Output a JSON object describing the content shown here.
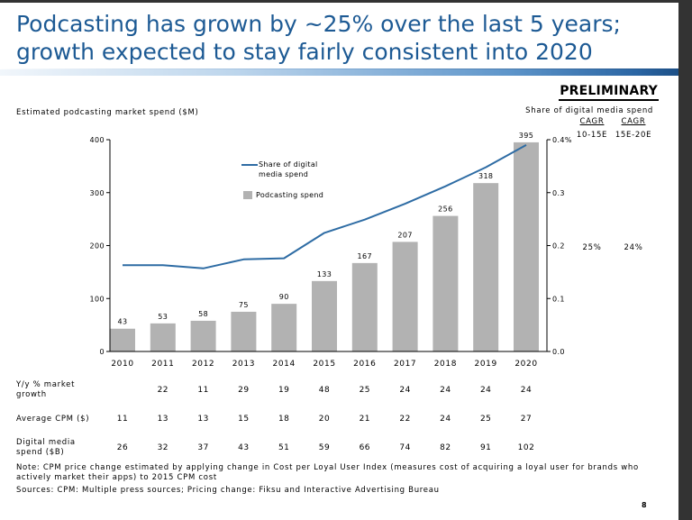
{
  "title": {
    "line1": "Podcasting has grown by ~25% over the last 5 years;",
    "line2": "growth expected to stay fairly consistent into 2020"
  },
  "badge": "PRELIMINARY",
  "colors": {
    "title": "#1d5a94",
    "bar": "#b2b2b2",
    "line": "#2e6ca4"
  },
  "chart_data": {
    "type": "bar",
    "ylabel": "Estimated podcasting market spend ($M)",
    "y2label": "Share of digital media spend",
    "categories": [
      "2010",
      "2011",
      "2012",
      "2013",
      "2014",
      "2015",
      "2016",
      "2017",
      "2018",
      "2019",
      "2020"
    ],
    "series": [
      {
        "name": "Podcasting spend",
        "values": [
          43,
          53,
          58,
          75,
          90,
          133,
          167,
          207,
          256,
          318,
          395
        ]
      },
      {
        "name": "Share of digital media spend",
        "values": [
          0.163,
          0.163,
          0.157,
          0.174,
          0.176,
          0.224,
          0.249,
          0.279,
          0.312,
          0.348,
          0.39
        ],
        "secondary_axis": true
      }
    ],
    "ylim": [
      0,
      400
    ],
    "y2lim": [
      0,
      0.4
    ],
    "yticks": [
      "0",
      "100",
      "200",
      "300",
      "400"
    ],
    "y2ticks": [
      "0.0",
      "0.1",
      "0.2",
      "0.3",
      "0.4%"
    ]
  },
  "cagr": {
    "columns": [
      {
        "label": "CAGR",
        "period": "10-15E",
        "value": "25%"
      },
      {
        "label": "CAGR",
        "period": "15E-20E",
        "value": "24%"
      }
    ]
  },
  "table": {
    "rows": [
      {
        "label": "Y/y % market growth",
        "values": [
          null,
          22,
          11,
          29,
          19,
          48,
          25,
          24,
          24,
          24,
          24
        ]
      },
      {
        "label": "Average CPM ($)",
        "values": [
          11,
          13,
          13,
          15,
          18,
          20,
          21,
          22,
          24,
          25,
          27
        ]
      },
      {
        "label": "Digital media spend ($B)",
        "values": [
          26,
          32,
          37,
          43,
          51,
          59,
          66,
          74,
          82,
          91,
          102
        ]
      }
    ]
  },
  "note_lines": [
    "Note: CPM price change estimated by applying change in Cost per Loyal User Index (measures cost of acquiring a loyal user for brands who",
    "actively market their apps) to 2015 CPM cost"
  ],
  "sources": "Sources: CPM: Multiple press sources; Pricing change: Fiksu and Interactive Advertising Bureau",
  "page_number": "8"
}
